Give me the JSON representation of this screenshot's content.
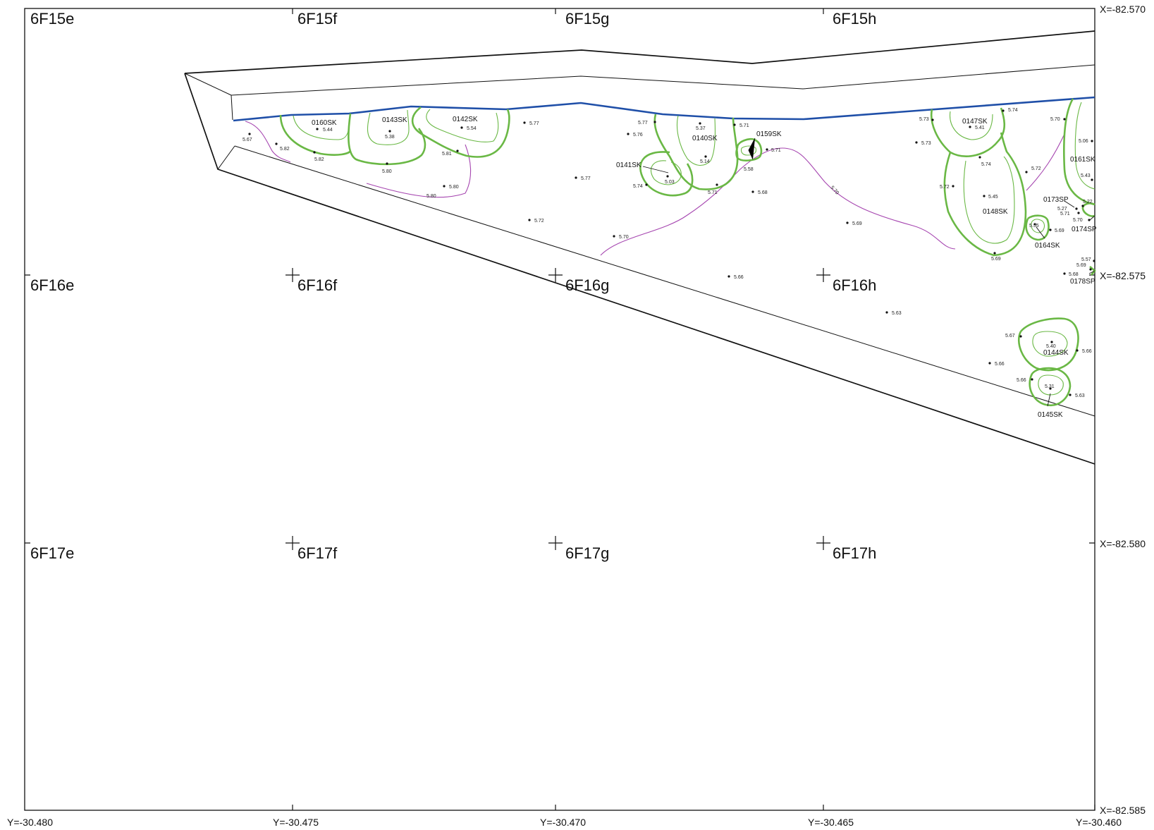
{
  "grid_cells": [
    {
      "id": "6F15e"
    },
    {
      "id": "6F15f"
    },
    {
      "id": "6F15g"
    },
    {
      "id": "6F15h"
    },
    {
      "id": "6F16e"
    },
    {
      "id": "6F16f"
    },
    {
      "id": "6F16g"
    },
    {
      "id": "6F16h"
    },
    {
      "id": "6F17e"
    },
    {
      "id": "6F17f"
    },
    {
      "id": "6F17g"
    },
    {
      "id": "6F17h"
    }
  ],
  "x_coordinates": [
    "X=-82.570",
    "X=-82.575",
    "X=-82.580",
    "X=-82.585"
  ],
  "y_coordinates": [
    "Y=-30.480",
    "Y=-30.475",
    "Y=-30.470",
    "Y=-30.465",
    "Y=-30.460"
  ],
  "features": [
    "0160SK",
    "0143SK",
    "0142SK",
    "0140SK",
    "0141SK",
    "0159SK",
    "0147SK",
    "0148SK",
    "0161SK",
    "0164SK",
    "0173SP",
    "0174SP",
    "0178SP",
    "0144SK",
    "0145SK"
  ],
  "contour_label": "5.70",
  "elevations": [
    "5.67",
    "5.82",
    "5.82",
    "5.44",
    "5.38",
    "5.80",
    "5.54",
    "5.81",
    "5.80",
    "5.80",
    "5.77",
    "5.77",
    "5.72",
    "5.70",
    "5.77",
    "5.76",
    "5.37",
    "5.14",
    "5.03",
    "5.74",
    "5.71",
    "5.71",
    "5.71",
    "5.58",
    "5.68",
    "5.66",
    "5.69",
    "5.63",
    "5.73",
    "5.73",
    "5.41",
    "5.74",
    "5.74",
    "5.72",
    "5.72",
    "5.45",
    "5.69",
    "5.70",
    "5.06",
    "5.43",
    "5.22",
    "5.27",
    "5.71",
    "5.70",
    "5.55",
    "5.69",
    "5.57",
    "5.69",
    "5.68",
    "5.67",
    "5.40",
    "5.66",
    "5.66",
    "5.66",
    "5.31",
    "5.63"
  ],
  "colors": {
    "pit_outline": "#6ab845",
    "excavation_edge": "#1f4fa8",
    "contour": "#a646b0",
    "lines": "#111111"
  }
}
